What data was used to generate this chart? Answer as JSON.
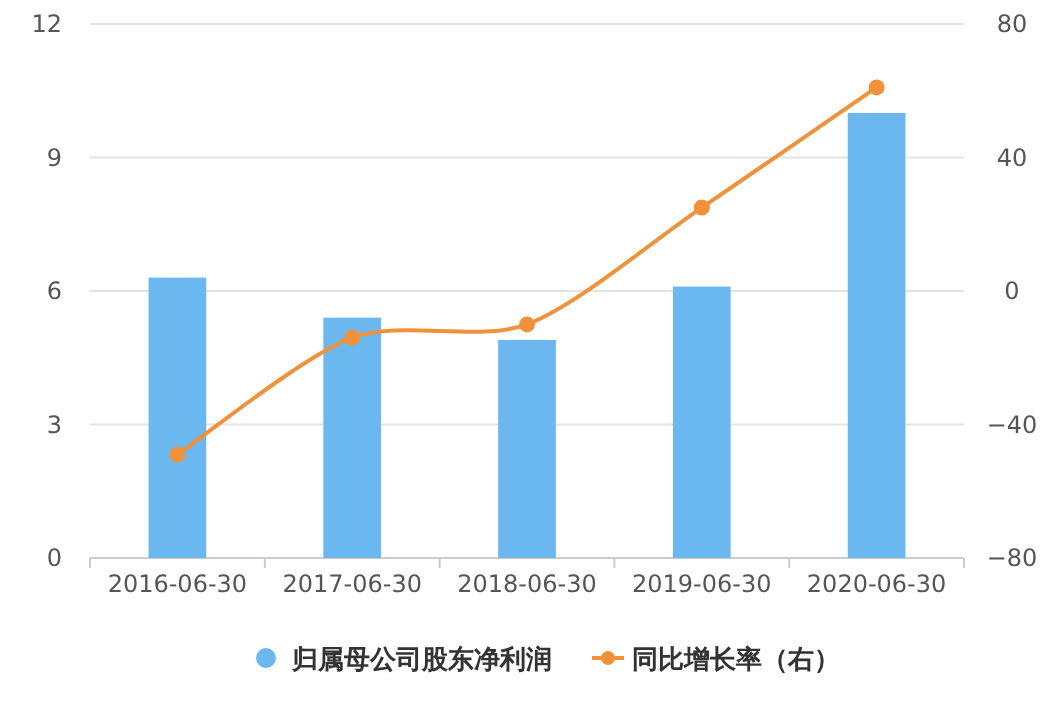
{
  "chart_data": {
    "type": "bar",
    "categories": [
      "2016-06-30",
      "2017-06-30",
      "2018-06-30",
      "2019-06-30",
      "2020-06-30"
    ],
    "series": [
      {
        "name": "归属母公司股东净利润",
        "color": "#6bb8f0",
        "values": [
          6.3,
          5.4,
          4.9,
          6.1,
          10.0
        ]
      },
      {
        "name": "同比增长率（右）",
        "type": "line",
        "axis": "y2",
        "color": "#f0923a",
        "marker": "circle",
        "values": [
          -49,
          -14,
          -10,
          25,
          61
        ]
      }
    ],
    "ylim": [
      0,
      12
    ],
    "yticks": [
      0,
      3,
      6,
      9,
      12
    ],
    "y2lim": [
      -80,
      80
    ],
    "y2ticks": [
      -80,
      -40,
      0,
      40,
      80
    ],
    "grid": "y",
    "legend": "bottom"
  }
}
